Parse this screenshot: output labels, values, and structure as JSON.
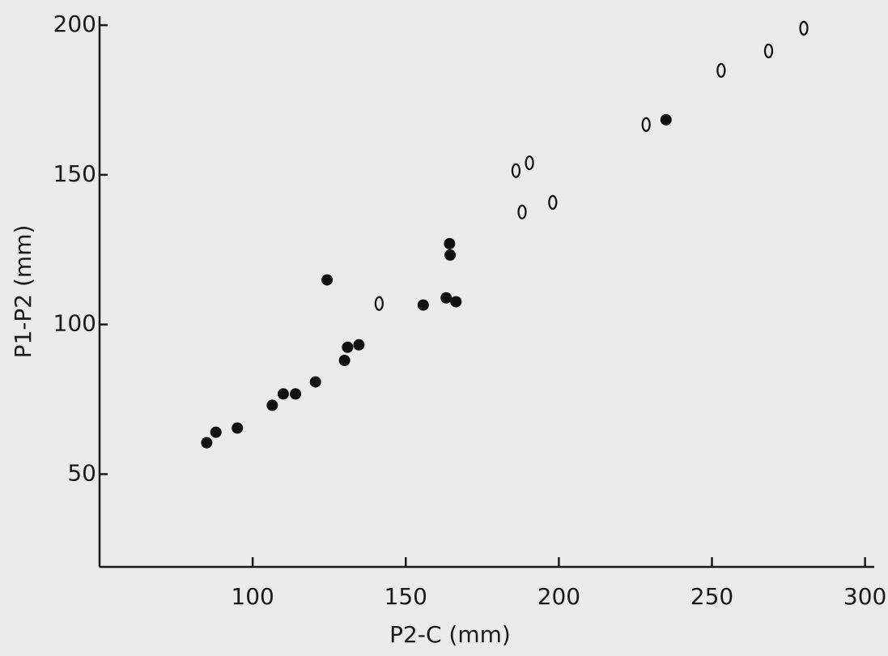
{
  "chart_data": {
    "type": "scatter",
    "xlabel": "P2-C (mm)",
    "ylabel": "P1-P2 (mm)",
    "xlim": [
      50,
      303
    ],
    "ylim": [
      19,
      203
    ],
    "xticks": [
      100,
      150,
      200,
      250,
      300
    ],
    "yticks": [
      50,
      100,
      150,
      200
    ],
    "series": [
      {
        "color": "#111111",
        "marker": "filled",
        "x": [
          85,
          88,
          95,
          106.4,
          110,
          114,
          120.5,
          124.3,
          130,
          131,
          134.7,
          155.7,
          163.2,
          166.4,
          164.3,
          164.5,
          235
        ],
        "values": [
          60.5,
          64,
          65.4,
          73,
          76.8,
          76.8,
          80.8,
          114.9,
          88,
          92.4,
          93.2,
          106.5,
          108.9,
          107.6,
          127,
          123.2,
          168.4
        ]
      },
      {
        "color": "#111111",
        "marker": "open",
        "x": [
          141.3,
          186,
          190.4,
          188,
          198,
          228.5,
          253,
          268.5,
          280
        ],
        "values": [
          107,
          151.4,
          154,
          137.6,
          140.8,
          166.8,
          184.9,
          191.4,
          199
        ]
      }
    ]
  }
}
